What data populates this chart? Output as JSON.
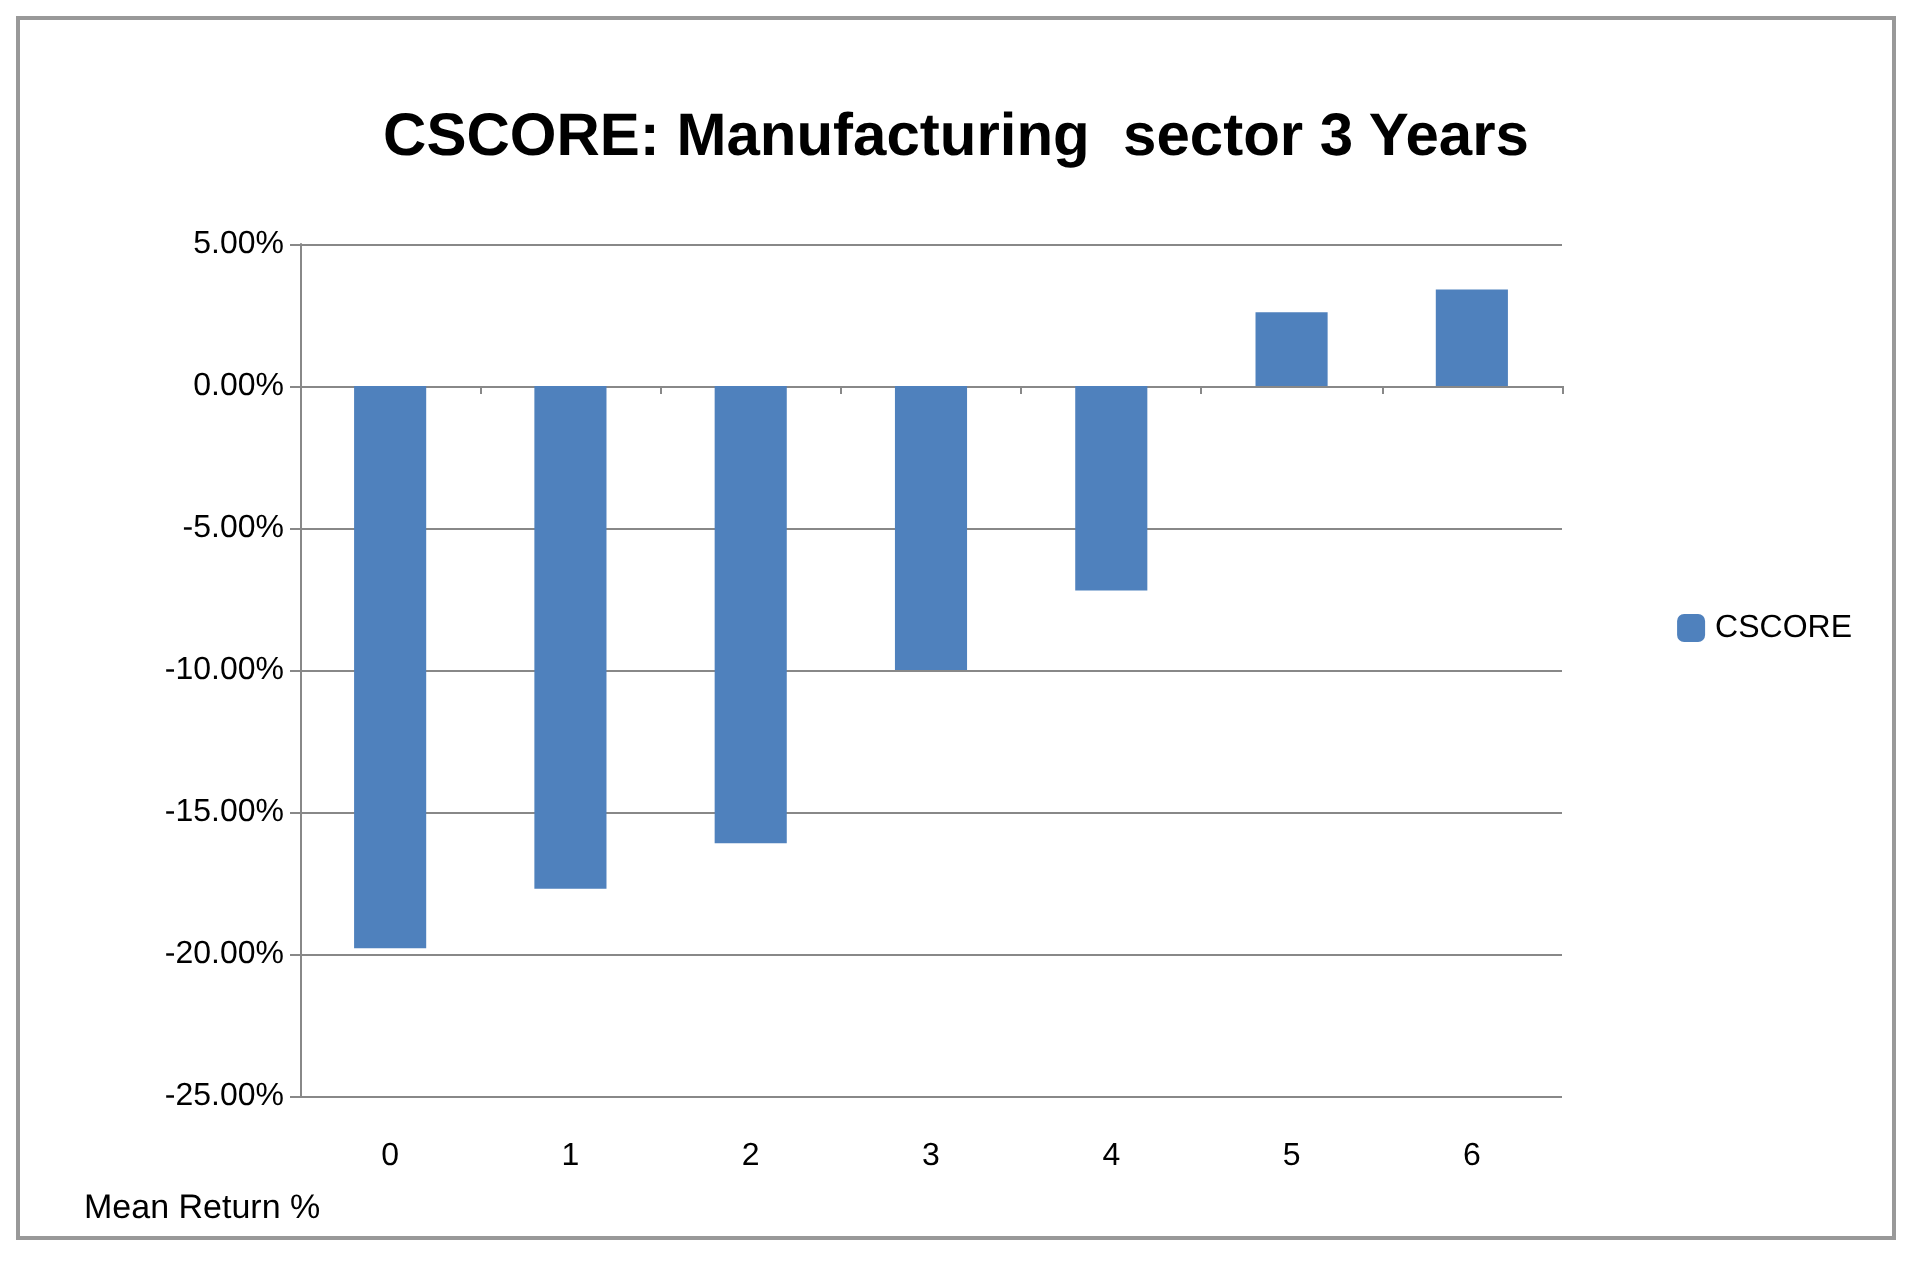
{
  "chart_data": {
    "type": "bar",
    "title": "CSCORE: Manufacturing  sector 3 Years",
    "xlabel": "Mean Return %",
    "categories": [
      "0",
      "1",
      "2",
      "3",
      "4",
      "5",
      "6"
    ],
    "series": [
      {
        "name": "CSCORE",
        "color": "#4f81bd",
        "values": [
          -19.8,
          -17.7,
          -16.1,
          -10.0,
          -7.2,
          2.6,
          3.4
        ]
      }
    ],
    "ylim": [
      -25,
      5
    ],
    "yticks": [
      {
        "value": -25,
        "label": "-25.00%"
      },
      {
        "value": -20,
        "label": "-20.00%"
      },
      {
        "value": -15,
        "label": "-15.00%"
      },
      {
        "value": -10,
        "label": "-10.00%"
      },
      {
        "value": -5,
        "label": "-5.00%"
      },
      {
        "value": 0,
        "label": "0.00%"
      },
      {
        "value": 5,
        "label": "5.00%"
      }
    ],
    "grid": "y",
    "legend": "right"
  }
}
